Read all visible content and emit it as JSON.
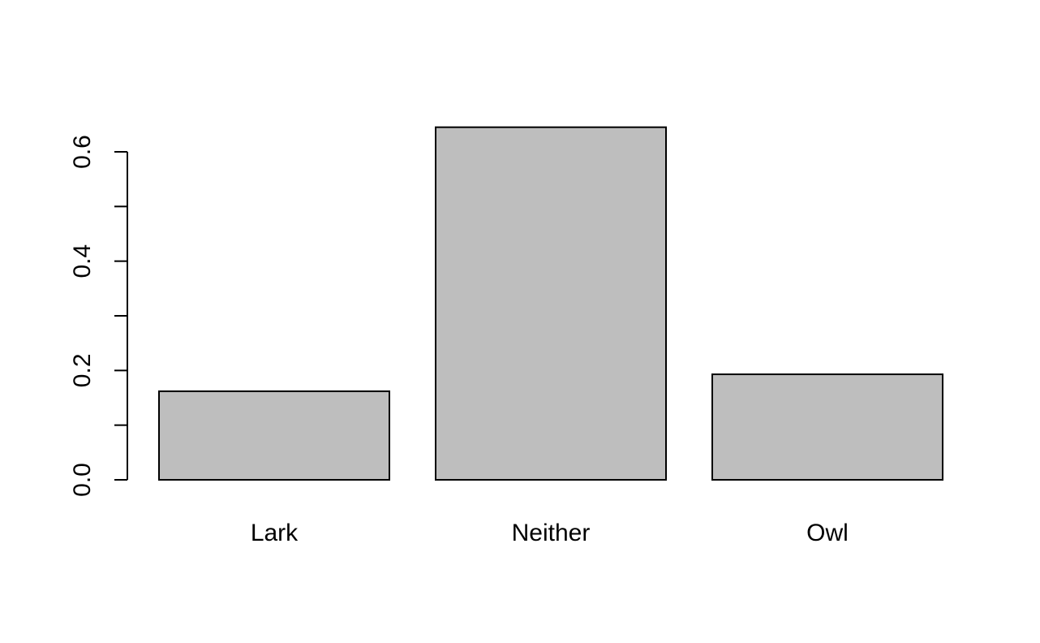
{
  "chart_data": {
    "type": "bar",
    "title": "",
    "xlabel": "",
    "ylabel": "",
    "categories": [
      "Lark",
      "Neither",
      "Owl"
    ],
    "values": [
      0.162,
      0.645,
      0.193
    ],
    "ylim": [
      0,
      0.6
    ],
    "yticks": [
      0.0,
      0.1,
      0.2,
      0.3,
      0.4,
      0.5,
      0.6
    ],
    "ytick_labels": [
      "0.0",
      "",
      "0.2",
      "",
      "0.4",
      "",
      "0.6"
    ],
    "grid": false,
    "legend": "none",
    "bar_color": "#bebebe",
    "bar_edge_color": "#000000"
  }
}
